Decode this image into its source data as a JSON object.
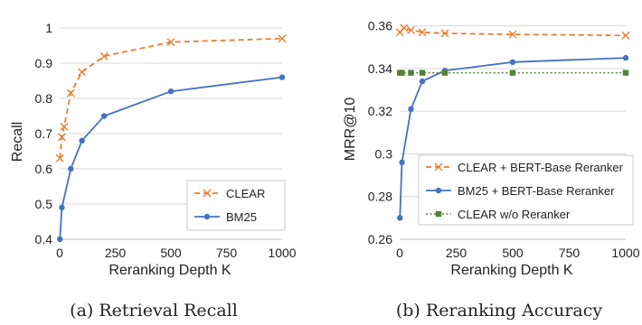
{
  "chart_data": [
    {
      "type": "line",
      "caption": "(a) Retrieval Recall",
      "xlabel": "Reranking Depth K",
      "ylabel": "Recall",
      "xlim": [
        0,
        1000
      ],
      "ylim": [
        0.4,
        1.0
      ],
      "xticks": [
        "0",
        "250",
        "500",
        "750",
        "1000"
      ],
      "yticks": [
        "0.4",
        "0.5",
        "0.6",
        "0.7",
        "0.8",
        "0.9",
        "1"
      ],
      "grid": "horizontal",
      "legend_position": "bottom-right",
      "series": [
        {
          "name": "CLEAR",
          "color": "#ED7D31",
          "dash": true,
          "marker": "x",
          "x": [
            1,
            10,
            20,
            50,
            100,
            200,
            500,
            1000
          ],
          "y": [
            0.63,
            0.69,
            0.72,
            0.815,
            0.875,
            0.92,
            0.96,
            0.97
          ]
        },
        {
          "name": "BM25",
          "color": "#4472C4",
          "dash": false,
          "marker": "circle",
          "x": [
            1,
            10,
            50,
            100,
            200,
            500,
            1000
          ],
          "y": [
            0.4,
            0.49,
            0.6,
            0.68,
            0.75,
            0.82,
            0.86
          ]
        }
      ]
    },
    {
      "type": "line",
      "caption": "(b) Reranking Accuracy",
      "xlabel": "Reranking Depth K",
      "ylabel": "MRR@10",
      "xlim": [
        0,
        1000
      ],
      "ylim": [
        0.26,
        0.37
      ],
      "xticks": [
        "0",
        "250",
        "500",
        "750",
        "1000"
      ],
      "yticks": [
        "0.26",
        "0.28",
        "0.3",
        "0.32",
        "0.34",
        "0.36"
      ],
      "grid": "horizontal",
      "legend_position": "center-right",
      "series": [
        {
          "name": "CLEAR + BERT-Base Reranker",
          "color": "#ED7D31",
          "dash": true,
          "marker": "x",
          "x": [
            1,
            20,
            50,
            100,
            200,
            500,
            1000
          ],
          "y": [
            0.357,
            0.359,
            0.358,
            0.357,
            0.3565,
            0.356,
            0.3555
          ]
        },
        {
          "name": "BM25 + BERT-Base Reranker",
          "color": "#4472C4",
          "dash": false,
          "marker": "circle",
          "x": [
            1,
            10,
            50,
            100,
            200,
            500,
            1000
          ],
          "y": [
            0.27,
            0.296,
            0.321,
            0.334,
            0.339,
            0.343,
            0.345
          ]
        },
        {
          "name": "CLEAR w/o Reranker",
          "color": "#548235",
          "dash": "dot",
          "marker": "square",
          "x": [
            1,
            10,
            50,
            100,
            200,
            500,
            1000
          ],
          "y": [
            0.338,
            0.338,
            0.338,
            0.338,
            0.338,
            0.338,
            0.338
          ]
        }
      ]
    }
  ]
}
